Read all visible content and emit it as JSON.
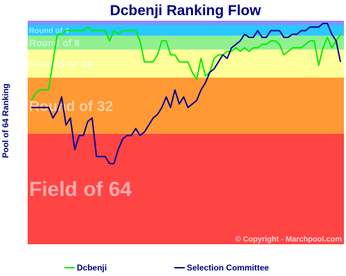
{
  "chart_data": {
    "type": "line",
    "title": "Dcbenji Ranking Flow",
    "ylabel": "Pool of 64 Ranking",
    "xlabel": "",
    "ylim": [
      64,
      1
    ],
    "bands": [
      {
        "label": "Round of 4",
        "from": 1,
        "to": 4,
        "color": "#29c8ff"
      },
      {
        "label": "Round of 8",
        "from": 5,
        "to": 8,
        "color": "#90f090"
      },
      {
        "label": "Round of 16",
        "from": 9,
        "to": 16,
        "color": "#ffff99"
      },
      {
        "label": "Round of 32",
        "from": 17,
        "to": 32,
        "color": "#ff9933"
      },
      {
        "label": "Field of 64",
        "from": 33,
        "to": 64,
        "color": "#ff4444"
      }
    ],
    "series": [
      {
        "name": "Dcbenji",
        "color": "#00ee00",
        "values": [
          23,
          21,
          20,
          20,
          20,
          12,
          4,
          4,
          3,
          3,
          3,
          3,
          3,
          2,
          3,
          3,
          3,
          3,
          6,
          3,
          4,
          3,
          3,
          3,
          3,
          6,
          12,
          12,
          12,
          10,
          6,
          6,
          10,
          10,
          12,
          12,
          12,
          15,
          17,
          11,
          16,
          15,
          11,
          10,
          10,
          9,
          9,
          8,
          9,
          8,
          9,
          8,
          8,
          7,
          7,
          6,
          6,
          7,
          10,
          9,
          8,
          8,
          8,
          7,
          6,
          6,
          13,
          8,
          5,
          8,
          6,
          4
        ]
      },
      {
        "name": "Selection Committee",
        "color": "#000099",
        "values": [
          25,
          25,
          25,
          25,
          25,
          28,
          26,
          22,
          30,
          28,
          37,
          33,
          33,
          29,
          28,
          39,
          39,
          39,
          41,
          41,
          37,
          34,
          33,
          33,
          31,
          33,
          32,
          30,
          28,
          27,
          25,
          22,
          25,
          20,
          24,
          22,
          25,
          24,
          23,
          20,
          18,
          15,
          14,
          12,
          10,
          11,
          8,
          7,
          6,
          4,
          5,
          5,
          3,
          5,
          5,
          3,
          3,
          3,
          5,
          5,
          4,
          4,
          3,
          3,
          2,
          2,
          2,
          1,
          1,
          4,
          6,
          12
        ]
      }
    ],
    "legend": {
      "position": "bottom",
      "entries": [
        "Dcbenji",
        "Selection Committee"
      ]
    },
    "grid": false,
    "annotation": "© Copyright - Marchpool.com"
  }
}
